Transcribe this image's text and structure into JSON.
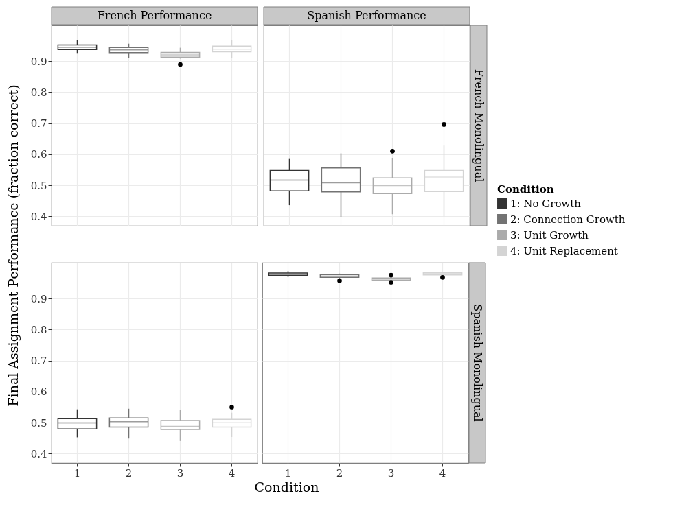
{
  "chart_data": [
    {
      "type": "box",
      "title": "French Performance",
      "ylabel": "Final Assignment Performance (fraction correct)",
      "categories": [
        "1",
        "2",
        "3",
        "4"
      ],
      "ylim": [
        0.37,
        1.015
      ],
      "yticks": [
        0.4,
        0.5,
        0.6,
        0.7,
        0.8,
        0.9
      ],
      "grid": true,
      "tick_labels": "y",
      "series": [
        {
          "color": "#333333",
          "x": [
            "1"
          ],
          "boxes": [
            {
              "low": 0.926,
              "q1": 0.937,
              "median": 0.945,
              "q3": 0.952,
              "high": 0.967
            }
          ]
        },
        {
          "color": "#737373",
          "x": [
            "2"
          ],
          "boxes": [
            {
              "low": 0.91,
              "q1": 0.927,
              "median": 0.936,
              "q3": 0.944,
              "high": 0.956
            }
          ]
        },
        {
          "color": "#ababab",
          "x": [
            "3"
          ],
          "boxes": [
            {
              "low": 0.908,
              "q1": 0.913,
              "median": 0.92,
              "q3": 0.928,
              "high": 0.943,
              "outliers": [
                0.889
              ]
            }
          ]
        },
        {
          "color": "#d4d4d4",
          "x": [
            "4"
          ],
          "boxes": [
            {
              "low": 0.911,
              "q1": 0.93,
              "median": 0.938,
              "q3": 0.948,
              "high": 0.967
            }
          ]
        }
      ]
    },
    {
      "type": "box",
      "title": "Spanish Performance",
      "y2label": "French Monolingual",
      "legend": "right",
      "legend_title": "Condition",
      "categories": [
        "1",
        "2",
        "3",
        "4"
      ],
      "ylim": [
        0.37,
        1.015
      ],
      "yticks": [
        0.4,
        0.5,
        0.6,
        0.7,
        0.8,
        0.9
      ],
      "grid": true,
      "tick_labels": false,
      "series": [
        {
          "name": "1: No Growth",
          "color": "#333333",
          "x": [
            "1"
          ],
          "boxes": [
            {
              "low": 0.436,
              "q1": 0.482,
              "median": 0.517,
              "q3": 0.548,
              "high": 0.585
            }
          ]
        },
        {
          "name": "2: Connection Growth",
          "color": "#737373",
          "x": [
            "2"
          ],
          "boxes": [
            {
              "low": 0.397,
              "q1": 0.479,
              "median": 0.508,
              "q3": 0.556,
              "high": 0.603
            }
          ]
        },
        {
          "name": "3: Unit Growth",
          "color": "#ababab",
          "x": [
            "3"
          ],
          "boxes": [
            {
              "low": 0.407,
              "q1": 0.473,
              "median": 0.499,
              "q3": 0.524,
              "high": 0.587,
              "outliers": [
                0.61
              ]
            }
          ]
        },
        {
          "name": "4: Unit Replacement",
          "color": "#d4d4d4",
          "x": [
            "4"
          ],
          "boxes": [
            {
              "low": 0.4,
              "q1": 0.48,
              "median": 0.527,
              "q3": 0.548,
              "high": 0.628,
              "outliers": [
                0.696
              ]
            }
          ]
        }
      ]
    },
    {
      "type": "box",
      "xlabel": "Condition",
      "categories": [
        "1",
        "2",
        "3",
        "4"
      ],
      "ylim": [
        0.37,
        1.015
      ],
      "yticks": [
        0.4,
        0.5,
        0.6,
        0.7,
        0.8,
        0.9
      ],
      "grid": true,
      "series": [
        {
          "color": "#333333",
          "x": [
            "1"
          ],
          "boxes": [
            {
              "low": 0.453,
              "q1": 0.48,
              "median": 0.499,
              "q3": 0.513,
              "high": 0.543
            }
          ]
        },
        {
          "color": "#737373",
          "x": [
            "2"
          ],
          "boxes": [
            {
              "low": 0.449,
              "q1": 0.486,
              "median": 0.503,
              "q3": 0.515,
              "high": 0.545
            }
          ]
        },
        {
          "color": "#ababab",
          "x": [
            "3"
          ],
          "boxes": [
            {
              "low": 0.441,
              "q1": 0.478,
              "median": 0.488,
              "q3": 0.507,
              "high": 0.542
            }
          ]
        },
        {
          "color": "#d4d4d4",
          "x": [
            "4"
          ],
          "boxes": [
            {
              "low": 0.454,
              "q1": 0.486,
              "median": 0.5,
              "q3": 0.511,
              "high": 0.532,
              "outliers": [
                0.55
              ]
            }
          ]
        }
      ]
    },
    {
      "type": "box",
      "y2label": "Spanish Monolingual",
      "categories": [
        "1",
        "2",
        "3",
        "4"
      ],
      "ylim": [
        0.37,
        1.015
      ],
      "yticks": [
        0.4,
        0.5,
        0.6,
        0.7,
        0.8,
        0.9
      ],
      "grid": true,
      "tick_labels": "x",
      "series": [
        {
          "color": "#333333",
          "x": [
            "1"
          ],
          "boxes": [
            {
              "low": 0.969,
              "q1": 0.974,
              "median": 0.978,
              "q3": 0.982,
              "high": 0.988
            }
          ]
        },
        {
          "color": "#737373",
          "x": [
            "2"
          ],
          "boxes": [
            {
              "low": 0.963,
              "q1": 0.968,
              "median": 0.972,
              "q3": 0.977,
              "high": 0.98,
              "outliers": [
                0.957
              ]
            }
          ]
        },
        {
          "color": "#ababab",
          "x": [
            "3"
          ],
          "boxes": [
            {
              "low": 0.956,
              "q1": 0.958,
              "median": 0.962,
              "q3": 0.966,
              "high": 0.968,
              "outliers": [
                0.975,
                0.952
              ]
            }
          ]
        },
        {
          "color": "#d4d4d4",
          "x": [
            "4"
          ],
          "boxes": [
            {
              "low": 0.972,
              "q1": 0.976,
              "median": 0.98,
              "q3": 0.983,
              "high": 0.986,
              "outliers": [
                0.968
              ]
            }
          ]
        }
      ]
    }
  ]
}
